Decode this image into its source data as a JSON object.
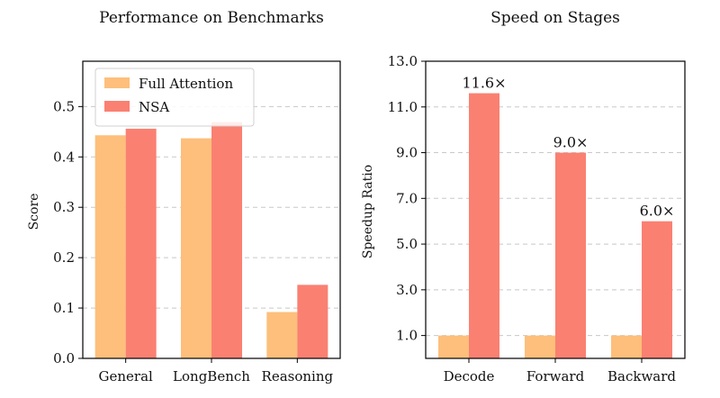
{
  "chart_data": [
    {
      "type": "bar",
      "title": "Performance on Benchmarks",
      "xlabel": "",
      "ylabel": "Score",
      "categories": [
        "General",
        "LongBench",
        "Reasoning"
      ],
      "series": [
        {
          "name": "Full Attention",
          "values": [
            0.443,
            0.437,
            0.092
          ]
        },
        {
          "name": "NSA",
          "values": [
            0.456,
            0.469,
            0.146
          ]
        }
      ],
      "ylim": [
        0.0,
        0.59
      ],
      "yticks": [
        0.0,
        0.1,
        0.2,
        0.3,
        0.4,
        0.5
      ],
      "ytick_labels": [
        "0.0",
        "0.1",
        "0.2",
        "0.3",
        "0.4",
        "0.5"
      ],
      "grid": "horizontal dashed",
      "legend": "top-left"
    },
    {
      "type": "bar",
      "title": "Speed on Stages",
      "xlabel": "",
      "ylabel": "Speedup Ratio",
      "categories": [
        "Decode",
        "Forward",
        "Backward"
      ],
      "series": [
        {
          "name": "Full Attention",
          "values": [
            1.0,
            1.0,
            1.0
          ]
        },
        {
          "name": "NSA",
          "values": [
            11.6,
            9.0,
            6.0
          ],
          "labels": [
            "11.6×",
            "9.0×",
            "6.0×"
          ]
        }
      ],
      "ylim": [
        0.0,
        13.0
      ],
      "yticks": [
        1.0,
        3.0,
        5.0,
        7.0,
        9.0,
        11.0,
        13.0
      ],
      "ytick_labels": [
        "1.0",
        "3.0",
        "5.0",
        "7.0",
        "9.0",
        "11.0",
        "13.0"
      ],
      "grid": "horizontal dashed",
      "legend": "none"
    }
  ],
  "colors": {
    "full_attention": "#fdbf7b",
    "nsa": "#fa8072",
    "grid": "#c8c8c8",
    "axis": "#000000"
  }
}
